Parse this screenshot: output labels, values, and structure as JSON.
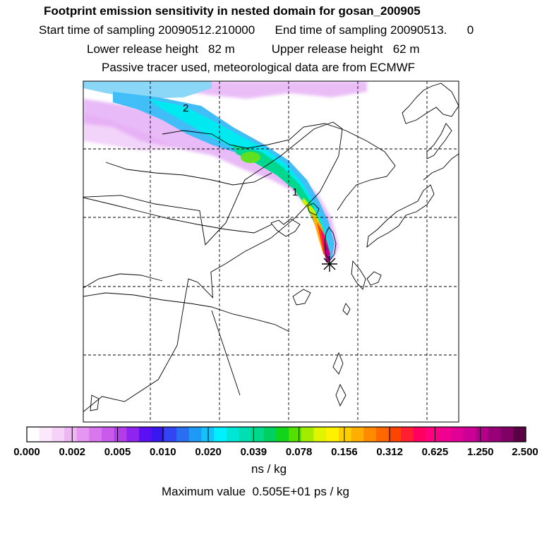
{
  "header": {
    "title": "Footprint emission sensitivity in nested domain for gosan_200905",
    "sampling_line": "Start time of sampling 20090512.210000      End time of sampling 20090513.      0",
    "release_line": "Lower release height   82 m           Upper release height   62 m",
    "tracer_line": "Passive tracer used, meteorological data are from ECMWF"
  },
  "map": {
    "contour_labels": [
      "2",
      "1"
    ],
    "receptor_marker": "asterisk-icon",
    "gridlines": "dashed",
    "plume_path": [
      [
        -2.3,
        16.9
      ],
      [
        -1.3,
        16.4
      ],
      [
        -0.2,
        15.8
      ],
      [
        1.0,
        15.0
      ],
      [
        2.2,
        14.5
      ],
      [
        3.4,
        13.8
      ],
      [
        4.5,
        12.9
      ],
      [
        5.2,
        11.6
      ],
      [
        5.7,
        10.2
      ],
      [
        6.1,
        9.1
      ],
      [
        6.5,
        7.9
      ],
      [
        6.8,
        6.8
      ],
      [
        7.0,
        6.0
      ]
    ],
    "land_outline": [
      [
        0,
        13.2
      ],
      [
        2,
        13.3
      ],
      [
        3.8,
        12.8
      ],
      [
        6.2,
        12.4
      ],
      [
        6.5,
        10.4
      ],
      [
        7.6,
        11.7
      ],
      [
        8.6,
        14.2
      ],
      [
        10.5,
        15.6
      ],
      [
        12.3,
        17.2
      ],
      [
        13.3,
        17.6
      ],
      [
        13.8,
        17.2
      ],
      [
        13.6,
        15.6
      ],
      [
        12.6,
        13.5
      ],
      [
        11.3,
        12
      ],
      [
        10,
        10.8
      ],
      [
        8.6,
        10
      ],
      [
        7.6,
        9.3
      ],
      [
        6.8,
        8.8
      ],
      [
        6.9,
        7.3
      ],
      [
        6.1,
        8.2
      ],
      [
        5.6,
        8.4
      ],
      [
        5.3,
        6.5
      ],
      [
        5,
        4.5
      ],
      [
        4,
        2.5
      ],
      [
        2.2,
        1.2
      ],
      [
        1,
        1.5
      ],
      [
        0,
        0.6
      ]
    ]
  },
  "colorbar": {
    "colors": [
      "#ffffff",
      "#fbe8fb",
      "#f6d2f8",
      "#efb6f4",
      "#e496f0",
      "#d877ee",
      "#c95aeb",
      "#b33be8",
      "#8f24f0",
      "#5b10f3",
      "#3818f0",
      "#3344f2",
      "#2a6ff3",
      "#1e9af6",
      "#12c2f8",
      "#00f0ff",
      "#00e6d6",
      "#00dfb2",
      "#00d88d",
      "#00d060",
      "#12d418",
      "#55e000",
      "#a3ec00",
      "#e2f500",
      "#fff200",
      "#ffd000",
      "#ffaf00",
      "#ff8a00",
      "#ff6800",
      "#ff4400",
      "#ff1f30",
      "#ff0060",
      "#ff0080",
      "#f00090",
      "#e00095",
      "#cc0095",
      "#b20088",
      "#990078",
      "#800065",
      "#5c0045"
    ],
    "labels": [
      "0.000",
      "0.002",
      "0.005",
      "0.010",
      "0.020",
      "0.039",
      "0.078",
      "0.156",
      "0.312",
      "0.625",
      "1.250",
      "2.500"
    ],
    "unit": "ns / kg"
  },
  "footer": {
    "max_value": "Maximum value  0.505E+01 ps / kg"
  }
}
